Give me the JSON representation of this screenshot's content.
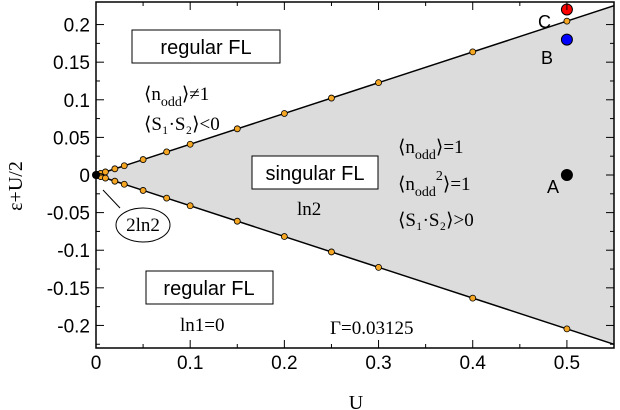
{
  "chart_data": {
    "type": "scatter",
    "xlabel": "U",
    "ylabel": "ε+U/2",
    "xlim": [
      0,
      0.55
    ],
    "ylim": [
      -0.23,
      0.23
    ],
    "x_ticks": [
      0,
      0.1,
      0.2,
      0.3,
      0.4,
      0.5
    ],
    "x_tick_labels": [
      "0",
      "0.1",
      "0.2",
      "0.3",
      "0.4",
      "0.5"
    ],
    "y_ticks": [
      0.2,
      0.15,
      0.1,
      0.05,
      0,
      -0.05,
      -0.1,
      -0.15,
      -0.2
    ],
    "y_tick_labels": [
      "0.2",
      "0.15",
      "0.1",
      "0.05",
      "0",
      "-0.05",
      "-0.1",
      "-0.15",
      "-0.2"
    ],
    "grid": false,
    "boundary_slope": 0.4092,
    "boundary_x": [
      0,
      0.55
    ],
    "series": [
      {
        "points": [
          {
            "x": 0.002,
            "y": 0.0008
          },
          {
            "x": 0.005,
            "y": 0.0021
          },
          {
            "x": 0.01,
            "y": 0.0041
          },
          {
            "x": 0.02,
            "y": 0.0082
          },
          {
            "x": 0.03,
            "y": 0.0123
          },
          {
            "x": 0.05,
            "y": 0.0205
          },
          {
            "x": 0.075,
            "y": 0.0307
          },
          {
            "x": 0.1,
            "y": 0.0409
          },
          {
            "x": 0.15,
            "y": 0.0614
          },
          {
            "x": 0.2,
            "y": 0.0818
          },
          {
            "x": 0.25,
            "y": 0.1023
          },
          {
            "x": 0.3,
            "y": 0.1228
          },
          {
            "x": 0.4,
            "y": 0.1637
          },
          {
            "x": 0.5,
            "y": 0.2046
          },
          {
            "x": 0.002,
            "y": -0.0008
          },
          {
            "x": 0.005,
            "y": -0.0021
          },
          {
            "x": 0.01,
            "y": -0.0041
          },
          {
            "x": 0.02,
            "y": -0.0082
          },
          {
            "x": 0.03,
            "y": -0.0123
          },
          {
            "x": 0.05,
            "y": -0.0205
          },
          {
            "x": 0.075,
            "y": -0.0307
          },
          {
            "x": 0.1,
            "y": -0.0409
          },
          {
            "x": 0.15,
            "y": -0.0614
          },
          {
            "x": 0.2,
            "y": -0.0818
          },
          {
            "x": 0.25,
            "y": -0.1023
          },
          {
            "x": 0.3,
            "y": -0.1228
          },
          {
            "x": 0.4,
            "y": -0.1637
          },
          {
            "x": 0.5,
            "y": -0.2046
          }
        ],
        "color": "#f5a623"
      }
    ],
    "marked_points": [
      {
        "label": "A",
        "x": 0.5,
        "y": 0.0,
        "color": "#000000"
      },
      {
        "label": "B",
        "x": 0.5,
        "y": 0.18,
        "color": "#0000ff"
      },
      {
        "label": "C",
        "x": 0.5,
        "y": 0.22,
        "color": "#ff0000"
      }
    ],
    "origin_point": {
      "x": 0,
      "y": 0,
      "color": "#000000"
    },
    "region_fill_color": "#dcdcdc",
    "regions": {
      "upper": {
        "title": "regular FL",
        "line1": "⟨n",
        "line1_sub": "odd",
        "line1_tail": "⟩≠1",
        "line2": "⟨S₁·S₂⟩<0"
      },
      "lower": {
        "title": "regular FL",
        "entropy": "ln1=0"
      },
      "middle": {
        "title": "singular FL",
        "entropy": "ln2",
        "line1": "⟨n",
        "line1_sub": "odd",
        "line1_tail": "⟩=1",
        "line2": "⟨n",
        "line2_sub": "odd",
        "line2_sup": "2",
        "line2_tail": "⟩=1",
        "line3": "⟨S₁·S₂⟩>0"
      },
      "origin_label": "2ln2"
    },
    "parameter_label": "Γ=0.03125"
  }
}
